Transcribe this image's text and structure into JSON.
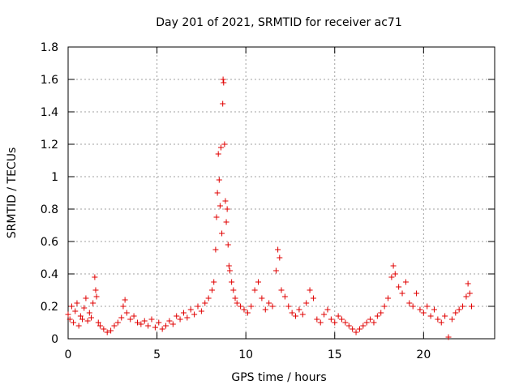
{
  "chart_data": {
    "type": "scatter",
    "title": "Day 201 of 2021, SRMTID for receiver ac71",
    "xlabel": "GPS time / hours",
    "ylabel": "SRMTID / TECUs",
    "xlim": [
      0,
      24
    ],
    "ylim": [
      0,
      1.8
    ],
    "x_ticks": [
      0,
      5,
      10,
      15,
      20
    ],
    "x_tick_labels": [
      "0",
      "5",
      "10",
      "15",
      "20"
    ],
    "y_ticks": [
      0,
      0.2,
      0.4,
      0.6,
      0.8,
      1.0,
      1.2,
      1.4,
      1.6,
      1.8
    ],
    "y_tick_labels": [
      "0",
      "0.2",
      "0.4",
      "0.6",
      "0.8",
      "1",
      "1.2",
      "1.4",
      "1.6",
      "1.8"
    ],
    "grid": true,
    "marker": "+",
    "color": "#e00000",
    "series": [
      {
        "name": "SRMTID",
        "points": [
          [
            0.0,
            0.15
          ],
          [
            0.1,
            0.12
          ],
          [
            0.2,
            0.2
          ],
          [
            0.3,
            0.1
          ],
          [
            0.4,
            0.17
          ],
          [
            0.5,
            0.22
          ],
          [
            0.6,
            0.08
          ],
          [
            0.7,
            0.14
          ],
          [
            0.8,
            0.12
          ],
          [
            0.9,
            0.19
          ],
          [
            1.0,
            0.25
          ],
          [
            1.1,
            0.11
          ],
          [
            1.2,
            0.16
          ],
          [
            1.3,
            0.13
          ],
          [
            1.4,
            0.22
          ],
          [
            1.5,
            0.38
          ],
          [
            1.55,
            0.3
          ],
          [
            1.6,
            0.26
          ],
          [
            1.7,
            0.1
          ],
          [
            1.8,
            0.08
          ],
          [
            2.0,
            0.06
          ],
          [
            2.2,
            0.04
          ],
          [
            2.4,
            0.05
          ],
          [
            2.6,
            0.08
          ],
          [
            2.8,
            0.1
          ],
          [
            3.0,
            0.13
          ],
          [
            3.1,
            0.2
          ],
          [
            3.2,
            0.24
          ],
          [
            3.3,
            0.16
          ],
          [
            3.5,
            0.12
          ],
          [
            3.7,
            0.14
          ],
          [
            3.9,
            0.1
          ],
          [
            4.1,
            0.09
          ],
          [
            4.3,
            0.11
          ],
          [
            4.5,
            0.08
          ],
          [
            4.7,
            0.12
          ],
          [
            4.9,
            0.07
          ],
          [
            5.1,
            0.1
          ],
          [
            5.3,
            0.06
          ],
          [
            5.5,
            0.08
          ],
          [
            5.7,
            0.11
          ],
          [
            5.9,
            0.09
          ],
          [
            6.1,
            0.14
          ],
          [
            6.3,
            0.12
          ],
          [
            6.5,
            0.16
          ],
          [
            6.7,
            0.13
          ],
          [
            6.9,
            0.18
          ],
          [
            7.1,
            0.15
          ],
          [
            7.3,
            0.2
          ],
          [
            7.5,
            0.17
          ],
          [
            7.7,
            0.22
          ],
          [
            7.9,
            0.25
          ],
          [
            8.1,
            0.3
          ],
          [
            8.2,
            0.35
          ],
          [
            8.3,
            0.55
          ],
          [
            8.35,
            0.75
          ],
          [
            8.4,
            0.9
          ],
          [
            8.45,
            1.14
          ],
          [
            8.5,
            0.98
          ],
          [
            8.55,
            0.82
          ],
          [
            8.6,
            1.18
          ],
          [
            8.65,
            0.65
          ],
          [
            8.7,
            1.45
          ],
          [
            8.72,
            1.6
          ],
          [
            8.75,
            1.58
          ],
          [
            8.8,
            1.2
          ],
          [
            8.85,
            0.85
          ],
          [
            8.9,
            0.72
          ],
          [
            8.95,
            0.8
          ],
          [
            9.0,
            0.58
          ],
          [
            9.05,
            0.45
          ],
          [
            9.1,
            0.42
          ],
          [
            9.2,
            0.35
          ],
          [
            9.3,
            0.3
          ],
          [
            9.4,
            0.25
          ],
          [
            9.5,
            0.22
          ],
          [
            9.7,
            0.2
          ],
          [
            9.9,
            0.18
          ],
          [
            10.1,
            0.16
          ],
          [
            10.3,
            0.2
          ],
          [
            10.5,
            0.3
          ],
          [
            10.7,
            0.35
          ],
          [
            10.9,
            0.25
          ],
          [
            11.1,
            0.18
          ],
          [
            11.3,
            0.22
          ],
          [
            11.5,
            0.2
          ],
          [
            11.7,
            0.42
          ],
          [
            11.8,
            0.55
          ],
          [
            11.9,
            0.5
          ],
          [
            12.0,
            0.3
          ],
          [
            12.2,
            0.26
          ],
          [
            12.4,
            0.2
          ],
          [
            12.6,
            0.16
          ],
          [
            12.8,
            0.14
          ],
          [
            13.0,
            0.18
          ],
          [
            13.2,
            0.15
          ],
          [
            13.4,
            0.22
          ],
          [
            13.6,
            0.3
          ],
          [
            13.8,
            0.25
          ],
          [
            14.0,
            0.12
          ],
          [
            14.2,
            0.1
          ],
          [
            14.4,
            0.15
          ],
          [
            14.6,
            0.18
          ],
          [
            14.8,
            0.12
          ],
          [
            15.0,
            0.1
          ],
          [
            15.2,
            0.14
          ],
          [
            15.4,
            0.12
          ],
          [
            15.6,
            0.1
          ],
          [
            15.8,
            0.08
          ],
          [
            16.0,
            0.06
          ],
          [
            16.2,
            0.04
          ],
          [
            16.4,
            0.06
          ],
          [
            16.6,
            0.08
          ],
          [
            16.8,
            0.1
          ],
          [
            17.0,
            0.12
          ],
          [
            17.2,
            0.1
          ],
          [
            17.4,
            0.14
          ],
          [
            17.6,
            0.16
          ],
          [
            17.8,
            0.2
          ],
          [
            18.0,
            0.25
          ],
          [
            18.2,
            0.38
          ],
          [
            18.3,
            0.45
          ],
          [
            18.4,
            0.4
          ],
          [
            18.6,
            0.32
          ],
          [
            18.8,
            0.28
          ],
          [
            19.0,
            0.35
          ],
          [
            19.2,
            0.22
          ],
          [
            19.4,
            0.2
          ],
          [
            19.6,
            0.28
          ],
          [
            19.8,
            0.18
          ],
          [
            20.0,
            0.16
          ],
          [
            20.2,
            0.2
          ],
          [
            20.4,
            0.14
          ],
          [
            20.6,
            0.18
          ],
          [
            20.8,
            0.12
          ],
          [
            21.0,
            0.1
          ],
          [
            21.2,
            0.14
          ],
          [
            21.4,
            0.01
          ],
          [
            21.6,
            0.12
          ],
          [
            21.8,
            0.16
          ],
          [
            22.0,
            0.18
          ],
          [
            22.2,
            0.2
          ],
          [
            22.4,
            0.26
          ],
          [
            22.5,
            0.34
          ],
          [
            22.6,
            0.28
          ],
          [
            22.7,
            0.2
          ]
        ]
      }
    ]
  }
}
